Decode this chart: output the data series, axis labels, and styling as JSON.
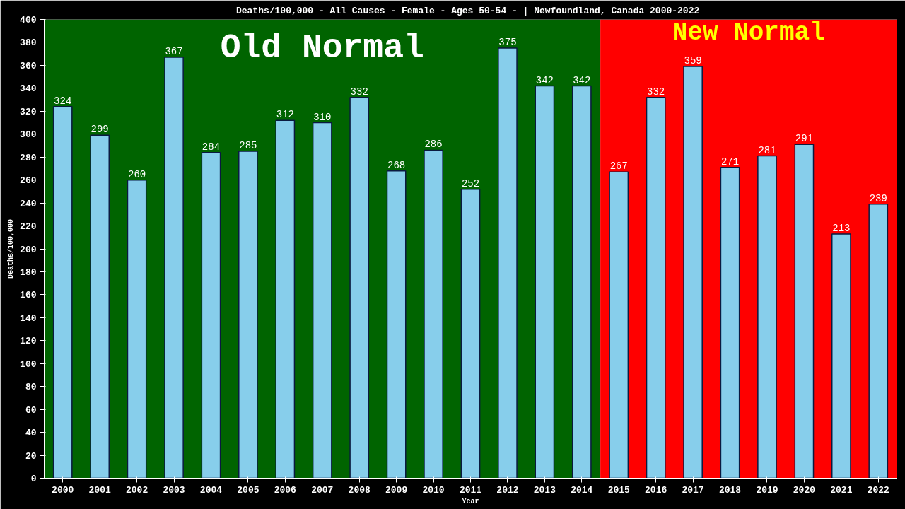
{
  "chart_data": {
    "type": "bar",
    "title": "Deaths/100,000 - All Causes - Female - Ages 50-54 -  | Newfoundland, Canada 2000-2022",
    "xlabel": "Year",
    "ylabel": "Deaths/100,000",
    "x": [
      2000,
      2001,
      2002,
      2003,
      2004,
      2005,
      2006,
      2007,
      2008,
      2009,
      2010,
      2011,
      2012,
      2013,
      2014,
      2015,
      2016,
      2017,
      2018,
      2019,
      2020,
      2021,
      2022
    ],
    "values": [
      324,
      299,
      260,
      367,
      284,
      285,
      312,
      310,
      332,
      268,
      286,
      252,
      375,
      342,
      342,
      267,
      332,
      359,
      271,
      281,
      291,
      213,
      239
    ],
    "color": "#87ceeb",
    "xlim": [
      1999.5,
      2022.5
    ],
    "xticks": [
      2000,
      2001,
      2002,
      2003,
      2004,
      2005,
      2006,
      2007,
      2008,
      2009,
      2010,
      2011,
      2012,
      2013,
      2014,
      2015,
      2016,
      2017,
      2018,
      2019,
      2020,
      2021,
      2022
    ],
    "ylim": [
      0,
      400
    ],
    "yticks": [
      0,
      20,
      40,
      60,
      80,
      100,
      120,
      140,
      160,
      180,
      200,
      220,
      240,
      260,
      280,
      300,
      320,
      340,
      360,
      380,
      400
    ],
    "bands": [
      {
        "axis": "x",
        "from": 1999.5,
        "to": 2014.5,
        "label": "Old Normal",
        "color": "#006400"
      },
      {
        "axis": "x",
        "from": 2014.5,
        "to": 2022.5,
        "label": "New Normal",
        "color": "#ff0000"
      }
    ],
    "data_labels": true,
    "grid": false
  }
}
